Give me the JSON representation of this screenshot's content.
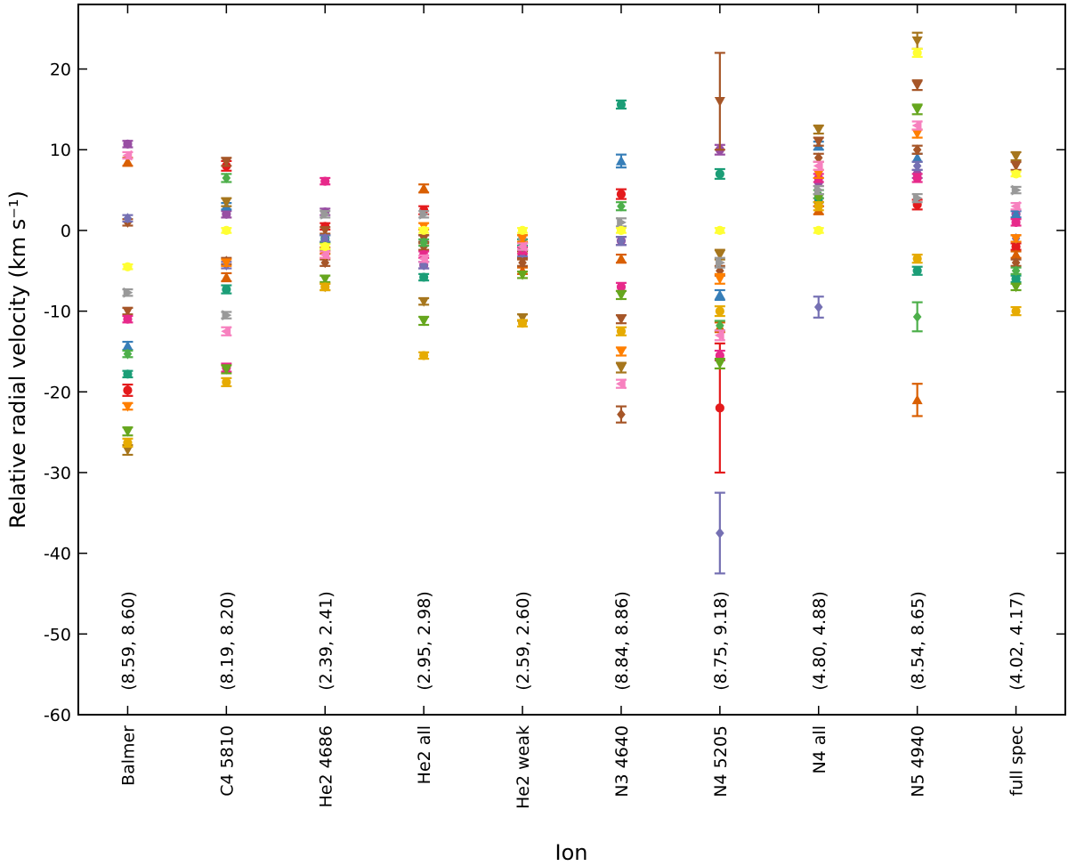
{
  "chart_data": {
    "type": "errorbar-scatter",
    "xlabel": "Ion",
    "ylabel": "Relative radial velocity (km s⁻¹)",
    "categories": [
      "Balmer",
      "C4 5810",
      "He2 4686",
      "He2 all",
      "He2 weak",
      "N3 4640",
      "N4 5205",
      "N4 all",
      "N5 4940",
      "full spec"
    ],
    "annotations": [
      "(8.59, 8.60)",
      "(8.19, 8.20)",
      "(2.39, 2.41)",
      "(2.95, 2.98)",
      "(2.59, 2.60)",
      "(8.84, 8.86)",
      "(8.75, 9.18)",
      "(4.80, 4.88)",
      "(8.54, 8.65)",
      "(4.02, 4.17)"
    ],
    "ylim": [
      -60,
      28
    ],
    "yticks": [
      -60,
      -50,
      -40,
      -30,
      -20,
      -10,
      0,
      10,
      20
    ],
    "series": [
      {
        "color": "#984ea3",
        "marker": "circle",
        "values": [
          10.7,
          2,
          2.3,
          -4.3,
          -2,
          -1.3,
          10,
          6,
          7,
          2
        ],
        "errors": [
          0.4,
          0.4,
          0.4,
          0.4,
          0.4,
          0.5,
          0.6,
          0.5,
          0.5,
          0.4
        ]
      },
      {
        "color": "#e41a1c",
        "marker": "circle",
        "values": [
          -19.8,
          8,
          0.5,
          2.5,
          -3,
          4.5,
          -22,
          3.5,
          3.2,
          -2
        ],
        "errors": [
          0.7,
          0.6,
          0.4,
          0.5,
          0.4,
          0.6,
          8,
          0.5,
          0.6,
          0.4
        ]
      },
      {
        "color": "#1b9e77",
        "marker": "circle",
        "values": [
          -17.8,
          -7.3,
          -1,
          -5.8,
          -1.5,
          15.6,
          7,
          4,
          -5,
          -6
        ],
        "errors": [
          0.4,
          0.5,
          0.4,
          0.4,
          0.4,
          0.5,
          0.6,
          0.5,
          0.5,
          0.4
        ]
      },
      {
        "color": "#377eb8",
        "marker": "triangle-up",
        "values": [
          -14.3,
          3,
          -1,
          -1,
          -2,
          8.6,
          -8,
          10.5,
          9,
          2
        ],
        "errors": [
          0.5,
          0.4,
          0.4,
          0.4,
          0.4,
          0.8,
          0.6,
          0.5,
          0.5,
          0.4
        ]
      },
      {
        "color": "#d95f02",
        "marker": "triangle-up",
        "values": [
          8.5,
          -5.8,
          -2.5,
          5.2,
          -5,
          -3.5,
          -12,
          2.5,
          -21,
          -3
        ],
        "errors": [
          0.5,
          0.5,
          0.4,
          0.5,
          0.4,
          0.5,
          0.6,
          0.5,
          2,
          0.4
        ]
      },
      {
        "color": "#a6761d",
        "marker": "triangle-down",
        "values": [
          -27.2,
          3.5,
          -7,
          -8.8,
          -10.8,
          -17,
          -3,
          12.5,
          23.5,
          9.2
        ],
        "errors": [
          0.6,
          0.5,
          0.4,
          0.4,
          0.4,
          0.6,
          0.6,
          0.5,
          1,
          0.5
        ]
      },
      {
        "color": "#a65628",
        "marker": "diamond",
        "values": [
          1,
          -3.8,
          -4,
          -2,
          -4,
          -22.8,
          -5,
          9,
          10,
          -4
        ],
        "errors": [
          0.4,
          0.4,
          0.4,
          0.4,
          0.4,
          1,
          0.6,
          0.5,
          0.5,
          0.4
        ]
      },
      {
        "color": "#a65628",
        "marker": "triangle-down",
        "values": [
          -10,
          8.5,
          0,
          -1,
          -3,
          -11,
          16,
          11,
          18,
          8
        ],
        "errors": [
          0.4,
          0.5,
          0.4,
          0.4,
          0.4,
          0.5,
          6,
          0.5,
          0.6,
          0.5
        ]
      },
      {
        "color": "#7570b3",
        "marker": "diamond",
        "values": [
          1.5,
          -4.3,
          -1,
          -4.3,
          -2.8,
          -1.3,
          -37.5,
          -9.5,
          8,
          -1
        ],
        "errors": [
          0.4,
          0.4,
          0.4,
          0.4,
          0.4,
          0.5,
          5,
          1.3,
          0.5,
          0.4
        ]
      },
      {
        "color": "#e7298a",
        "marker": "circle",
        "values": [
          -11,
          -17,
          6.1,
          -3,
          -2.5,
          -7,
          -15.5,
          6.5,
          6.5,
          1
        ],
        "errors": [
          0.4,
          0.5,
          0.4,
          0.4,
          0.4,
          0.5,
          0.6,
          0.5,
          0.5,
          0.4
        ]
      },
      {
        "color": "#4daf4a",
        "marker": "diamond",
        "values": [
          -15.3,
          6.5,
          -2,
          -1.5,
          -2,
          3,
          -11.8,
          4.5,
          -10.7,
          -5
        ],
        "errors": [
          0.4,
          0.5,
          0.4,
          0.4,
          0.4,
          0.5,
          0.6,
          0.5,
          1.8,
          0.4
        ]
      },
      {
        "color": "#66a61e",
        "marker": "triangle-down",
        "values": [
          -24.9,
          -17.2,
          -6,
          -11.2,
          -5.5,
          -8,
          -16.5,
          4,
          15,
          -7
        ],
        "errors": [
          0.5,
          0.5,
          0.4,
          0.5,
          0.4,
          0.5,
          0.6,
          0.5,
          0.6,
          0.4
        ]
      },
      {
        "color": "#e6ab02",
        "marker": "circle",
        "values": [
          -26.3,
          -18.8,
          -7,
          -15.5,
          -11.5,
          -12.5,
          -10,
          3,
          -3.5,
          -10
        ],
        "errors": [
          0.5,
          0.5,
          0.4,
          0.4,
          0.4,
          0.5,
          0.6,
          0.5,
          0.5,
          0.5
        ]
      },
      {
        "color": "#999999",
        "marker": "triangle-right",
        "values": [
          -7.7,
          -10.5,
          2,
          2,
          -1,
          1,
          -4,
          5,
          4,
          5
        ],
        "errors": [
          0.4,
          0.4,
          0.4,
          0.4,
          0.4,
          0.5,
          0.6,
          0.5,
          0.5,
          0.4
        ]
      },
      {
        "color": "#ff7f00",
        "marker": "triangle-down",
        "values": [
          -21.8,
          -4,
          -3,
          0.5,
          -1,
          -15,
          -6,
          7,
          12,
          -1
        ],
        "errors": [
          0.4,
          0.4,
          0.4,
          0.4,
          0.4,
          0.5,
          0.6,
          0.5,
          0.5,
          0.4
        ]
      },
      {
        "color": "#f781bf",
        "marker": "triangle-left",
        "values": [
          9.3,
          -12.5,
          -3,
          -3.5,
          -2,
          -19,
          -13,
          8,
          13,
          3
        ],
        "errors": [
          0.4,
          0.5,
          0.4,
          0.4,
          0.4,
          0.5,
          0.6,
          0.5,
          0.5,
          0.4
        ]
      },
      {
        "color": "#ffff33",
        "marker": "circle",
        "values": [
          -4.5,
          0,
          -2,
          0,
          0,
          0,
          0,
          0,
          22,
          7
        ],
        "errors": [
          0.3,
          0.3,
          0.3,
          0.3,
          0.3,
          0.3,
          0.3,
          0.3,
          0.5,
          0.3
        ]
      }
    ]
  }
}
